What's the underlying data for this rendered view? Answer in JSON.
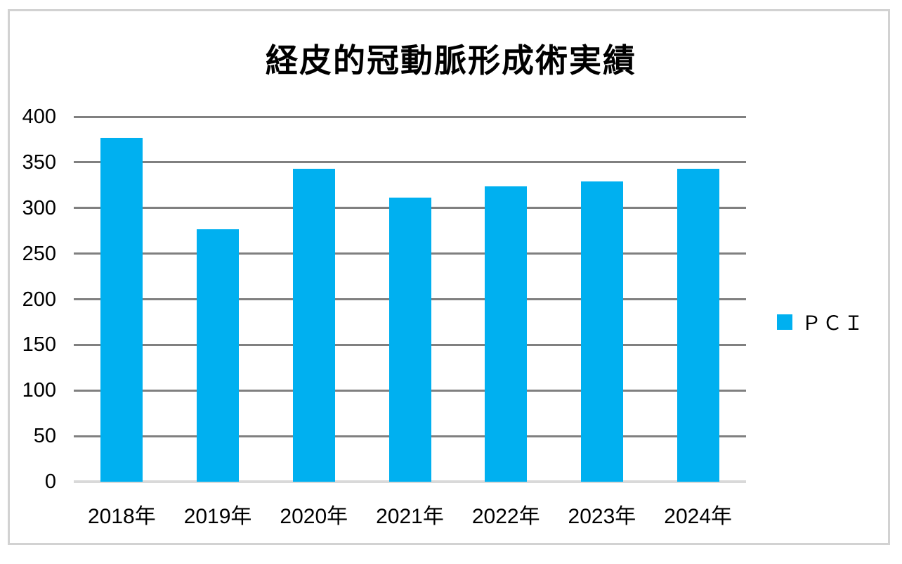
{
  "chart_data": {
    "type": "bar",
    "title": "経皮的冠動脈形成術実績",
    "categories": [
      "2018年",
      "2019年",
      "2020年",
      "2021年",
      "2022年",
      "2023年",
      "2024年"
    ],
    "series": [
      {
        "name": "ＰＣＩ",
        "values": [
          377,
          277,
          343,
          311,
          324,
          329,
          343
        ],
        "color": "#00b0f0"
      }
    ],
    "ylim": [
      0,
      400
    ],
    "yticks": [
      0,
      50,
      100,
      150,
      200,
      250,
      300,
      350,
      400
    ],
    "xlabel": "",
    "ylabel": "",
    "grid": "horizontal",
    "legend_position": "right",
    "colors": {
      "bar": "#00b0f0",
      "gridline": "#808080",
      "axis_baseline": "#d9d9d9",
      "text": "#000000",
      "frame_border": "#d2d2d2",
      "background": "#ffffff"
    }
  }
}
